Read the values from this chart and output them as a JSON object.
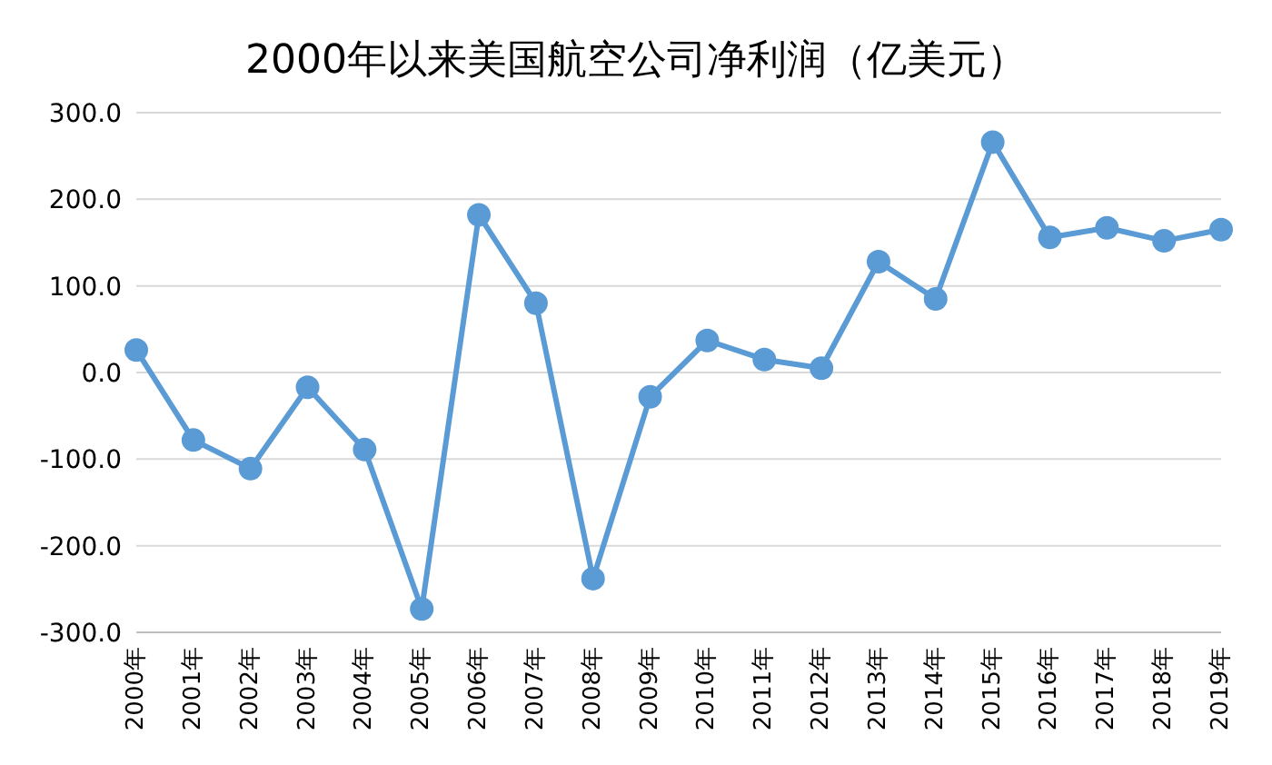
{
  "chart_data": {
    "type": "line",
    "title": "2000年以来美国航空公司净利润（亿美元）",
    "categories": [
      "2000年",
      "2001年",
      "2002年",
      "2003年",
      "2004年",
      "2005年",
      "2006年",
      "2007年",
      "2008年",
      "2009年",
      "2010年",
      "2011年",
      "2012年",
      "2013年",
      "2014年",
      "2015年",
      "2016年",
      "2017年",
      "2018年",
      "2019年"
    ],
    "series": [
      {
        "color": "#5b9bd5",
        "values": [
          26,
          -78,
          -111,
          -17,
          -89,
          -273,
          182,
          80,
          -238,
          -28,
          37,
          15,
          5,
          128,
          85,
          266,
          156,
          167,
          152,
          165
        ]
      }
    ],
    "ylim": [
      -300,
      300
    ],
    "yticks": [
      {
        "value": -300,
        "label": "-300.0"
      },
      {
        "value": -200,
        "label": "-200.0"
      },
      {
        "value": -100,
        "label": "-100.0"
      },
      {
        "value": 0,
        "label": "0.0"
      },
      {
        "value": 100,
        "label": "100.0"
      },
      {
        "value": 200,
        "label": "200.0"
      },
      {
        "value": 300,
        "label": "300.0"
      }
    ],
    "grid": "y",
    "marker": "circle",
    "line_style": "solid"
  }
}
